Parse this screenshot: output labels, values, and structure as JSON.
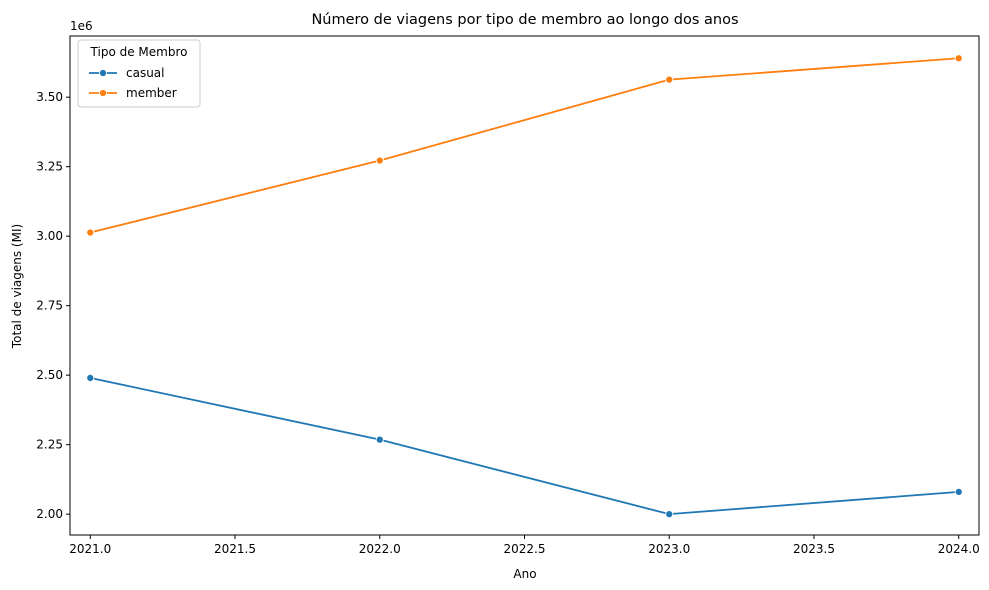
{
  "chart_data": {
    "type": "line",
    "title": "Número de viagens por tipo de membro ao longo dos anos",
    "xlabel": "Ano",
    "ylabel": "Total de viagens (MI)",
    "y_offset_label": "1e6",
    "x": [
      2021,
      2022,
      2023,
      2024
    ],
    "xlim": [
      2020.93,
      2024.07
    ],
    "ylim": [
      1.925,
      3.72
    ],
    "x_ticks": [
      2021.0,
      2021.5,
      2022.0,
      2022.5,
      2023.0,
      2023.5,
      2024.0
    ],
    "x_tick_labels": [
      "2021.0",
      "2021.5",
      "2022.0",
      "2022.5",
      "2023.0",
      "2023.5",
      "2024.0"
    ],
    "y_ticks": [
      2.0,
      2.25,
      2.5,
      2.75,
      3.0,
      3.25,
      3.5
    ],
    "y_tick_labels": [
      "2.00",
      "2.25",
      "2.50",
      "2.75",
      "3.00",
      "3.25",
      "3.50"
    ],
    "grid": false,
    "legend": {
      "title": "Tipo de Membro",
      "placement": "upper-left"
    },
    "series": [
      {
        "name": "casual",
        "color": "#1f77b4",
        "marker": "circle",
        "values": [
          2.49,
          2.268,
          2.0,
          2.08
        ]
      },
      {
        "name": "member",
        "color": "#ff7f0e",
        "marker": "circle",
        "values": [
          3.013,
          3.272,
          3.563,
          3.64
        ]
      }
    ]
  }
}
